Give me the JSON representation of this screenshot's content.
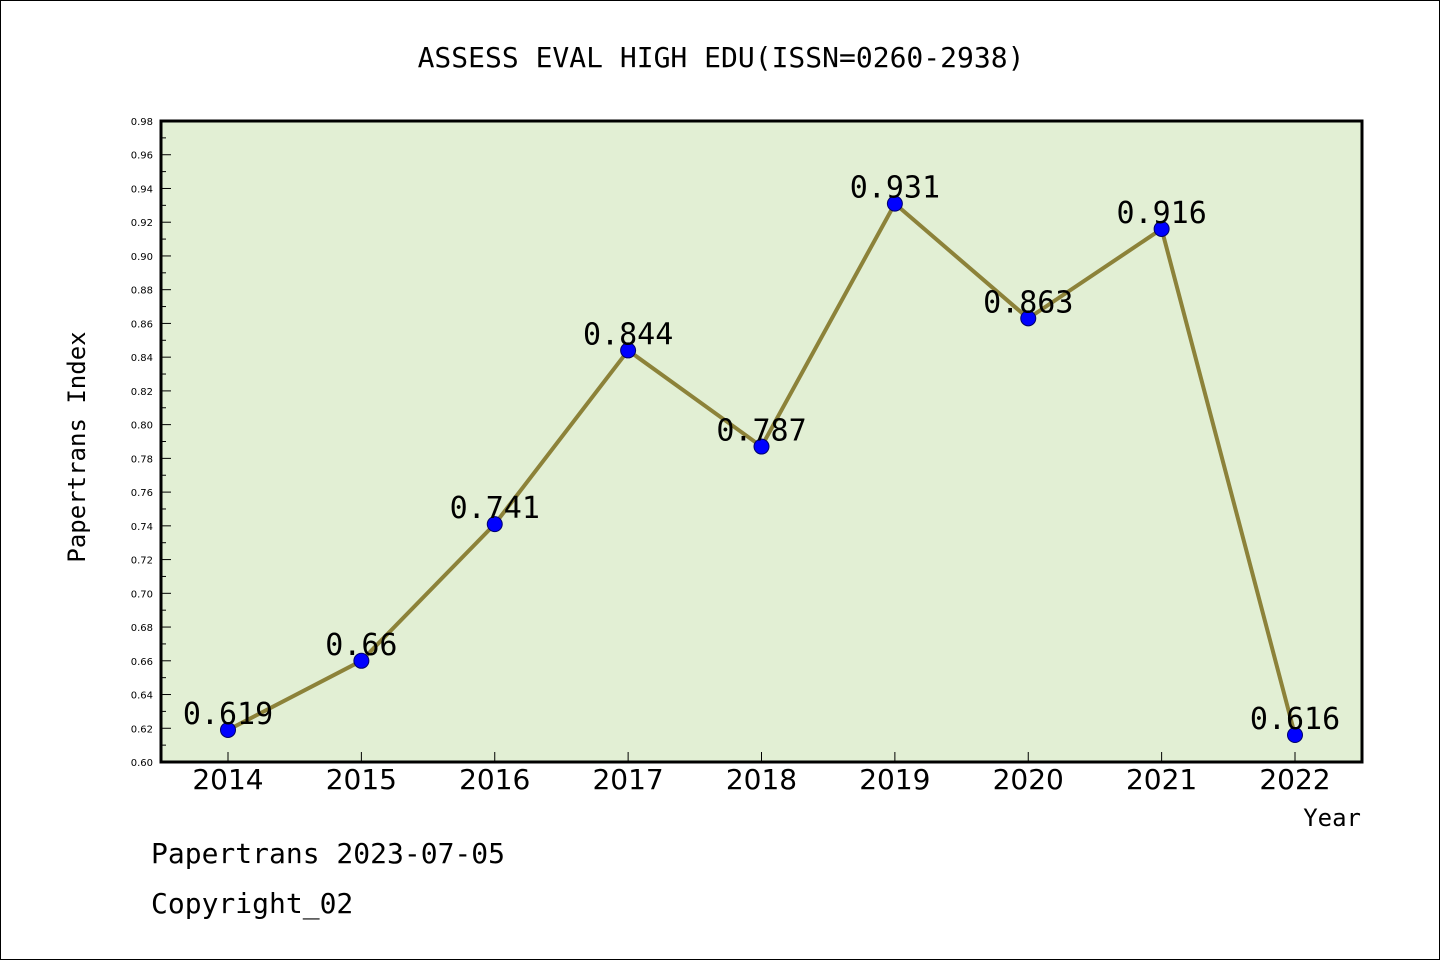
{
  "chart_data": {
    "type": "line",
    "title": "ASSESS EVAL HIGH EDU(ISSN=0260-2938)",
    "xlabel": "Year",
    "ylabel": "Papertrans Index",
    "categories": [
      "2014",
      "2015",
      "2016",
      "2017",
      "2018",
      "2019",
      "2020",
      "2021",
      "2022"
    ],
    "series": [
      {
        "values": [
          0.619,
          0.66,
          0.741,
          0.844,
          0.787,
          0.931,
          0.863,
          0.916,
          0.616
        ],
        "labels": [
          "0.619",
          "0.66",
          "0.741",
          "0.844",
          "0.787",
          "0.931",
          "0.863",
          "0.916",
          "0.616"
        ]
      }
    ],
    "ylim": [
      0.6,
      0.98
    ],
    "yticks": [
      "0.60",
      "0.62",
      "0.64",
      "0.66",
      "0.68",
      "0.70",
      "0.72",
      "0.74",
      "0.76",
      "0.78",
      "0.80",
      "0.82",
      "0.84",
      "0.86",
      "0.88",
      "0.90",
      "0.92",
      "0.94",
      "0.96",
      "0.98"
    ],
    "grid": false,
    "colors": {
      "plot_background": "#e2efd4",
      "line": "#8c8239",
      "marker": "#0000ff"
    }
  },
  "footer": {
    "line1": "Papertrans 2023-07-05",
    "line2": "Copyright_02"
  }
}
